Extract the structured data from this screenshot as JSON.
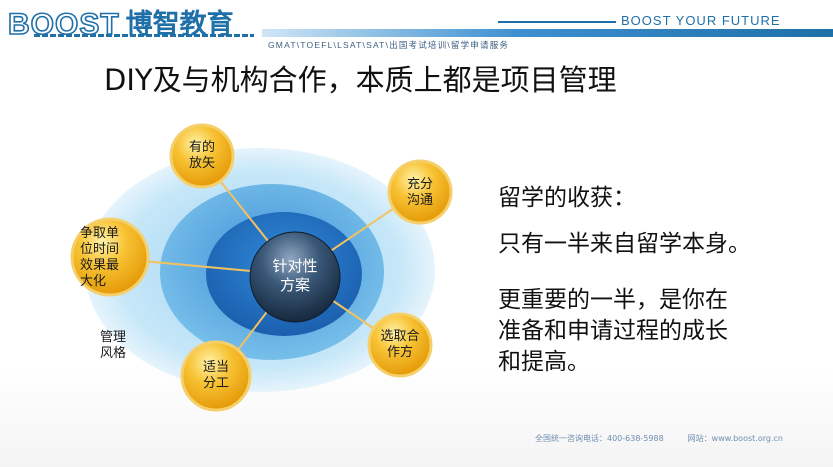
{
  "header": {
    "logo_en": "BOOST",
    "logo_cn": "博智教育",
    "tagline": "BOOST YOUR FUTURE",
    "services": "GMAT\\TOEFL\\LSAT\\SAT\\出国考试培训\\留学申请服务"
  },
  "slide": {
    "title": "DIY及与机构合作，本质上都是项目管理"
  },
  "diagram": {
    "center": [
      "针对性",
      "方案"
    ],
    "nodes": {
      "top": [
        "有的",
        "放矢"
      ],
      "right_top": [
        "充分",
        "沟通"
      ],
      "left": [
        "争取单",
        "位时间",
        "效果最",
        "大化"
      ],
      "right_bottom": [
        "选取合",
        "作方"
      ],
      "bottom": [
        "适当",
        "分工"
      ]
    },
    "outside_label": [
      "管理",
      "风格"
    ]
  },
  "right_text": {
    "line1": "留学的收获：",
    "line2": "只有一半来自留学本身。",
    "line3": "更重要的一半，是你在",
    "line4": "准备和申请过程的成长",
    "line5": "和提高。"
  },
  "footer": {
    "text": "全国统一咨询电话：400-638-5988　　　网站：www.boost.org.cn"
  },
  "colors": {
    "brand_blue": "#1f6fa8",
    "node_gold": "#f2b01e",
    "ring_outer": "#bfe3f7",
    "ring_mid": "#5aaee4",
    "ring_inner": "#1f78c8"
  }
}
